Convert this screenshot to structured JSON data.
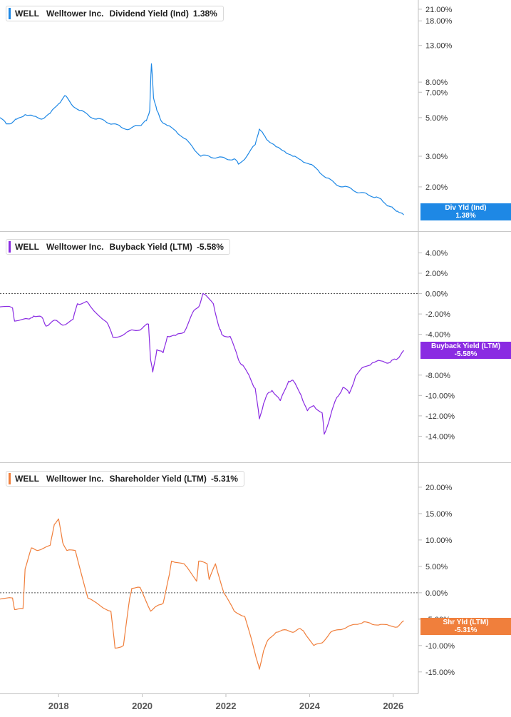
{
  "panels": [
    {
      "ticker": "WELL",
      "company": "Welltower Inc.",
      "metric": "Dividend Yield (Ind)",
      "value_label": "1.38%",
      "flag_label": "Div Yld (Ind)",
      "flag_value": "1.38%",
      "color": "#1e88e5"
    },
    {
      "ticker": "WELL",
      "company": "Welltower Inc.",
      "metric": "Buyback Yield (LTM)",
      "value_label": "-5.58%",
      "flag_label": "Buyback Yield (LTM)",
      "flag_value": "-5.58%",
      "color": "#8a2be2"
    },
    {
      "ticker": "WELL",
      "company": "Welltower Inc.",
      "metric": "Shareholder Yield (LTM)",
      "value_label": "-5.31%",
      "flag_label": "Shr Yld (LTM)",
      "flag_value": "-5.31%",
      "color": "#f07f3c"
    }
  ],
  "chart_data": [
    {
      "type": "line",
      "ylabel": "",
      "y_scale": "log",
      "y_ticks": [
        "21.00%",
        "18.00%",
        "13.00%",
        "8.00%",
        "7.00%",
        "5.00%",
        "3.00%",
        "2.00%"
      ],
      "y_tick_values": [
        21,
        18,
        13,
        8,
        7,
        5,
        3,
        2
      ],
      "ylim": [
        1.2,
        22
      ],
      "series": [
        {
          "x": [
            2016.6,
            2016.75,
            2016.9,
            2017.0,
            2017.2,
            2017.4,
            2017.6,
            2017.8,
            2018.0,
            2018.15,
            2018.3,
            2018.5,
            2018.7,
            2018.9,
            2019.1,
            2019.3,
            2019.5,
            2019.7,
            2019.9,
            2020.0,
            2020.1,
            2020.18,
            2020.22,
            2020.27,
            2020.35,
            2020.45,
            2020.6,
            2020.8,
            2021.0,
            2021.2,
            2021.4,
            2021.6,
            2021.8,
            2022.0,
            2022.2,
            2022.3,
            2022.5,
            2022.7,
            2022.8,
            2022.9,
            2023.0,
            2023.2,
            2023.4,
            2023.6,
            2023.8,
            2024.0,
            2024.2,
            2024.4,
            2024.6,
            2024.8,
            2025.0,
            2025.2,
            2025.4,
            2025.6,
            2025.75,
            2025.9,
            2026.0,
            2026.1,
            2026.25
          ],
          "y": [
            5.0,
            4.6,
            4.7,
            4.9,
            5.2,
            5.1,
            4.9,
            5.3,
            6.0,
            6.7,
            6.0,
            5.5,
            5.2,
            4.9,
            4.8,
            4.6,
            4.4,
            4.3,
            4.5,
            4.6,
            4.8,
            5.5,
            10.2,
            6.5,
            5.5,
            4.8,
            4.5,
            4.2,
            3.8,
            3.4,
            3.0,
            3.0,
            2.95,
            2.9,
            2.9,
            2.7,
            3.0,
            3.5,
            4.3,
            4.0,
            3.7,
            3.4,
            3.2,
            3.0,
            2.85,
            2.7,
            2.5,
            2.25,
            2.1,
            2.0,
            1.95,
            1.85,
            1.8,
            1.75,
            1.65,
            1.55,
            1.5,
            1.45,
            1.38
          ]
        }
      ]
    },
    {
      "type": "line",
      "ylabel": "",
      "y_ticks": [
        "4.00%",
        "2.00%",
        "0.00%",
        "-2.00%",
        "-4.00%",
        "-8.00%",
        "-10.00%",
        "-12.00%",
        "-14.00%"
      ],
      "y_tick_values": [
        4,
        2,
        0,
        -2,
        -4,
        -8,
        -10,
        -12,
        -14
      ],
      "ylim": [
        -16,
        5.5
      ],
      "zero_line": true,
      "series": [
        {
          "x": [
            2016.6,
            2016.9,
            2016.95,
            2017.3,
            2017.4,
            2017.6,
            2017.7,
            2017.9,
            2018.1,
            2018.35,
            2018.45,
            2018.65,
            2018.75,
            2019.15,
            2019.3,
            2019.6,
            2019.8,
            2020.0,
            2020.15,
            2020.2,
            2020.25,
            2020.35,
            2020.5,
            2020.6,
            2020.8,
            2021.0,
            2021.2,
            2021.35,
            2021.45,
            2021.7,
            2021.85,
            2021.9,
            2022.1,
            2022.3,
            2022.4,
            2022.6,
            2022.7,
            2022.8,
            2022.9,
            2023.0,
            2023.1,
            2023.3,
            2023.5,
            2023.6,
            2023.8,
            2023.95,
            2024.1,
            2024.3,
            2024.35,
            2024.5,
            2024.65,
            2024.8,
            2024.95,
            2025.1,
            2025.3,
            2025.5,
            2025.7,
            2025.9,
            2026.0,
            2026.1,
            2026.25
          ],
          "y": [
            -1.3,
            -1.4,
            -2.7,
            -2.5,
            -2.2,
            -2.3,
            -3.2,
            -2.6,
            -3.1,
            -2.5,
            -1.0,
            -0.8,
            -1.2,
            -2.8,
            -4.3,
            -3.9,
            -3.6,
            -3.4,
            -3.0,
            -6.5,
            -7.7,
            -5.5,
            -5.8,
            -4.2,
            -4.1,
            -3.8,
            -1.9,
            -1.3,
            0.0,
            -1.0,
            -3.5,
            -4.0,
            -4.2,
            -6.5,
            -7.0,
            -8.5,
            -9.3,
            -12.3,
            -10.8,
            -9.8,
            -9.5,
            -10.5,
            -8.6,
            -8.5,
            -10.0,
            -11.5,
            -11.0,
            -11.7,
            -13.8,
            -12.0,
            -10.2,
            -9.2,
            -9.8,
            -8.1,
            -7.2,
            -6.8,
            -6.6,
            -6.8,
            -6.5,
            -6.4,
            -5.58
          ]
        }
      ]
    },
    {
      "type": "line",
      "ylabel": "",
      "y_ticks": [
        "20.00%",
        "15.00%",
        "10.00%",
        "5.00%",
        "0.00%",
        "-5.00%",
        "-10.00%",
        "-15.00%"
      ],
      "y_tick_values": [
        20,
        15,
        10,
        5,
        0,
        -5,
        -10,
        -15
      ],
      "ylim": [
        -18,
        23.5
      ],
      "zero_line": true,
      "series": [
        {
          "x": [
            2016.6,
            2016.9,
            2016.95,
            2017.15,
            2017.2,
            2017.35,
            2017.5,
            2017.8,
            2017.9,
            2018.0,
            2018.1,
            2018.2,
            2018.4,
            2018.7,
            2019.0,
            2019.25,
            2019.35,
            2019.55,
            2019.7,
            2019.75,
            2019.95,
            2020.2,
            2020.35,
            2020.5,
            2020.65,
            2020.7,
            2021.0,
            2021.3,
            2021.35,
            2021.55,
            2021.6,
            2021.75,
            2021.95,
            2022.2,
            2022.45,
            2022.65,
            2022.75,
            2022.8,
            2022.9,
            2023.0,
            2023.2,
            2023.4,
            2023.6,
            2023.75,
            2023.85,
            2024.1,
            2024.3,
            2024.5,
            2024.7,
            2024.9,
            2025.1,
            2025.3,
            2025.5,
            2025.7,
            2025.9,
            2026.1,
            2026.25
          ],
          "y": [
            -1.2,
            -1.0,
            -3.2,
            -3.0,
            4.5,
            8.5,
            8.0,
            9.0,
            13.0,
            14.0,
            9.5,
            8.0,
            8.0,
            -1.0,
            -2.5,
            -3.5,
            -10.5,
            -10.0,
            -1.0,
            0.8,
            1.0,
            -3.5,
            -2.5,
            -2.0,
            3.5,
            6.0,
            5.5,
            2.2,
            6.0,
            5.5,
            2.5,
            5.5,
            0.0,
            -3.5,
            -4.5,
            -10.0,
            -13.0,
            -14.5,
            -11.0,
            -9.0,
            -7.5,
            -7.0,
            -7.5,
            -6.8,
            -7.2,
            -10.0,
            -9.5,
            -7.5,
            -7.0,
            -6.5,
            -6.0,
            -5.5,
            -6.0,
            -6.0,
            -6.2,
            -6.5,
            -5.31
          ]
        }
      ]
    }
  ],
  "x_axis": {
    "ticks": [
      "2018",
      "2020",
      "2022",
      "2024",
      "2026"
    ],
    "tick_values": [
      2018,
      2020,
      2022,
      2024,
      2026
    ],
    "xlim": [
      2016.6,
      2026.6
    ]
  }
}
